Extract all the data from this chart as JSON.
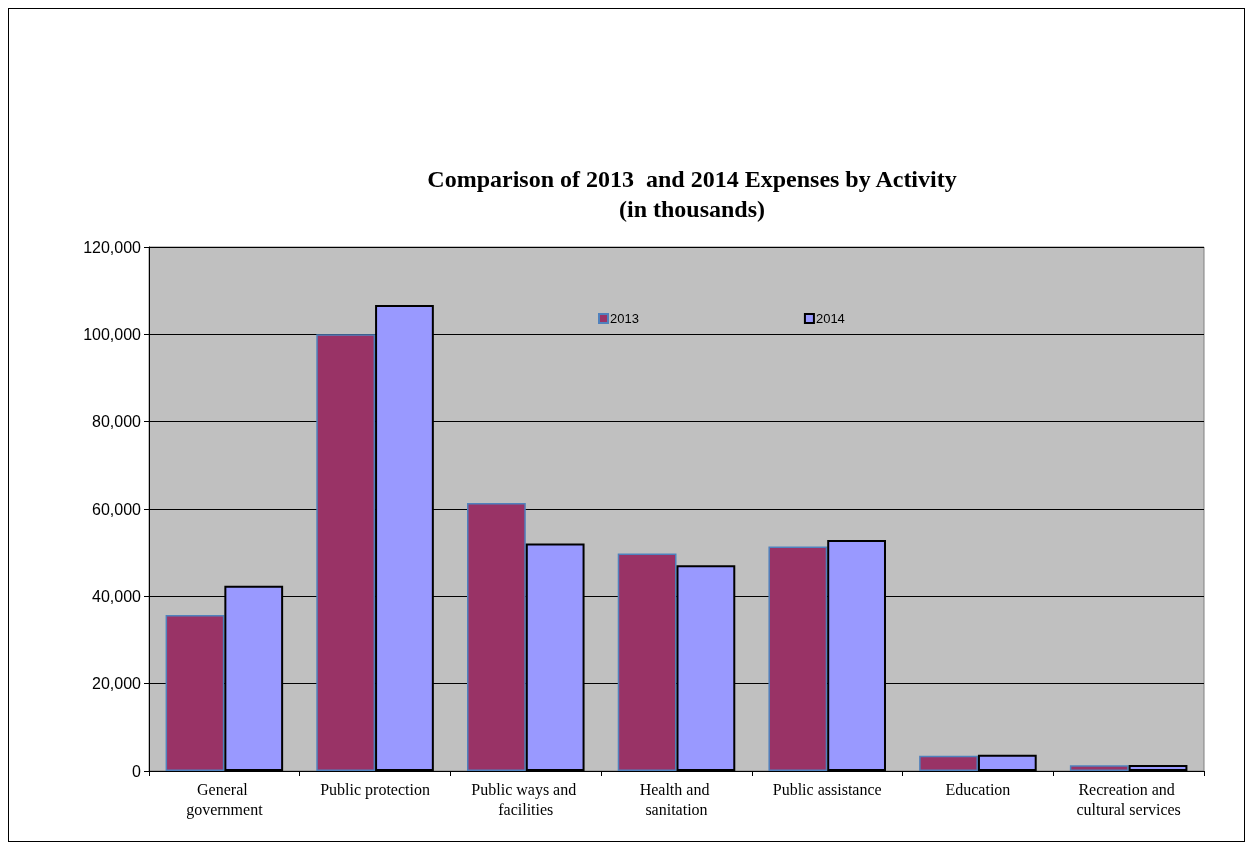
{
  "chart_data": {
    "type": "bar",
    "title": "Comparison of 2013  and 2014 Expenses by Activity\n(in thousands)",
    "categories": [
      "General government",
      "Public protection",
      "Public ways and facilities",
      "Health and sanitation",
      "Public assistance",
      "Education",
      "Recreation and cultural services"
    ],
    "series": [
      {
        "name": "2013",
        "color": "#993366",
        "values": [
          35700,
          100000,
          61400,
          49800,
          51400,
          3500,
          1300
        ]
      },
      {
        "name": "2014",
        "color": "#9999ff",
        "values": [
          42400,
          106700,
          52100,
          47100,
          52900,
          3700,
          1400
        ]
      }
    ],
    "ylim": [
      0,
      120000
    ],
    "yticks": [
      0,
      {
        "value": 20000,
        "label": "20,000"
      },
      {
        "value": 40000,
        "label": "40,000"
      },
      {
        "value": 60000,
        "label": "60,000"
      },
      {
        "value": 80000,
        "label": "80,000"
      },
      {
        "value": 100000,
        "label": "100,000"
      },
      {
        "value": 120000,
        "label": "120,000"
      }
    ],
    "grid": "y",
    "legend": "top"
  }
}
